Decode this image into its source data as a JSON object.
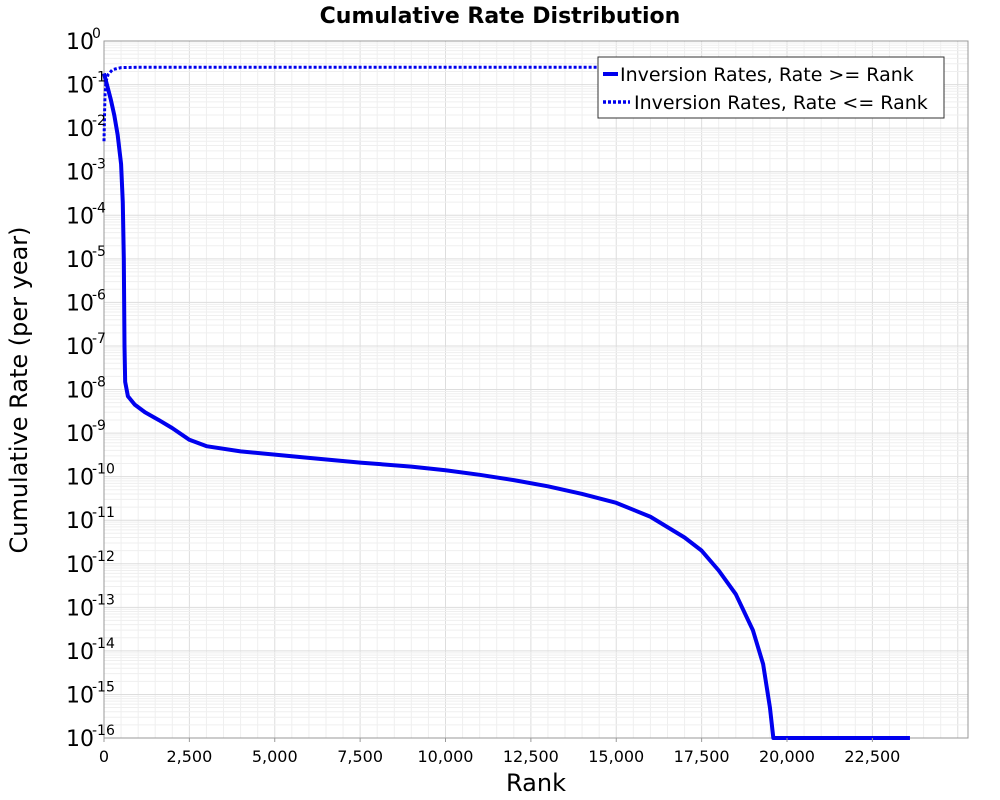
{
  "chart_data": {
    "type": "line",
    "title": "Cumulative Rate Distribution",
    "xlabel": "Rank",
    "ylabel": "Cumulative Rate (per year)",
    "xlim": [
      0,
      25300
    ],
    "ylim": [
      1e-16,
      1
    ],
    "yscale": "log",
    "grid": true,
    "legend_position": "top-right",
    "x_ticks": [
      {
        "value": 0,
        "label": "0"
      },
      {
        "value": 2500,
        "label": "2,500"
      },
      {
        "value": 5000,
        "label": "5,000"
      },
      {
        "value": 7500,
        "label": "7,500"
      },
      {
        "value": 10000,
        "label": "10,000"
      },
      {
        "value": 12500,
        "label": "12,500"
      },
      {
        "value": 15000,
        "label": "15,000"
      },
      {
        "value": 17500,
        "label": "17,500"
      },
      {
        "value": 20000,
        "label": "20,000"
      },
      {
        "value": 22500,
        "label": "22,500"
      }
    ],
    "y_ticks": [
      {
        "exp": 0,
        "base": "10",
        "sup": "0"
      },
      {
        "exp": -1,
        "base": "10",
        "sup": "-1"
      },
      {
        "exp": -2,
        "base": "10",
        "sup": "-2"
      },
      {
        "exp": -3,
        "base": "10",
        "sup": "-3"
      },
      {
        "exp": -4,
        "base": "10",
        "sup": "-4"
      },
      {
        "exp": -5,
        "base": "10",
        "sup": "-5"
      },
      {
        "exp": -6,
        "base": "10",
        "sup": "-6"
      },
      {
        "exp": -7,
        "base": "10",
        "sup": "-7"
      },
      {
        "exp": -8,
        "base": "10",
        "sup": "-8"
      },
      {
        "exp": -9,
        "base": "10",
        "sup": "-9"
      },
      {
        "exp": -10,
        "base": "10",
        "sup": "-10"
      },
      {
        "exp": -11,
        "base": "10",
        "sup": "-11"
      },
      {
        "exp": -12,
        "base": "10",
        "sup": "-12"
      },
      {
        "exp": -13,
        "base": "10",
        "sup": "-13"
      },
      {
        "exp": -14,
        "base": "10",
        "sup": "-14"
      },
      {
        "exp": -15,
        "base": "10",
        "sup": "-15"
      },
      {
        "exp": -16,
        "base": "10",
        "sup": "-16"
      }
    ],
    "series": [
      {
        "name": "Inversion Rates, Rate >= Rank",
        "style": "solid",
        "color": "#0000ee",
        "points": [
          [
            0,
            0.18
          ],
          [
            100,
            0.09
          ],
          [
            200,
            0.045
          ],
          [
            300,
            0.02
          ],
          [
            400,
            0.007
          ],
          [
            500,
            0.0015
          ],
          [
            550,
            0.0002
          ],
          [
            580,
            1e-05
          ],
          [
            600,
            1e-07
          ],
          [
            620,
            1.5e-08
          ],
          [
            700,
            7e-09
          ],
          [
            900,
            4.5e-09
          ],
          [
            1200,
            3e-09
          ],
          [
            1600,
            2e-09
          ],
          [
            2000,
            1.3e-09
          ],
          [
            2500,
            7e-10
          ],
          [
            3000,
            5e-10
          ],
          [
            4000,
            3.8e-10
          ],
          [
            5000,
            3.2e-10
          ],
          [
            6000,
            2.7e-10
          ],
          [
            7500,
            2.1e-10
          ],
          [
            9000,
            1.7e-10
          ],
          [
            10000,
            1.4e-10
          ],
          [
            11000,
            1.1e-10
          ],
          [
            12000,
            8.3e-11
          ],
          [
            13000,
            6e-11
          ],
          [
            14000,
            4e-11
          ],
          [
            15000,
            2.5e-11
          ],
          [
            16000,
            1.2e-11
          ],
          [
            17000,
            4e-12
          ],
          [
            17500,
            2e-12
          ],
          [
            18000,
            7e-13
          ],
          [
            18500,
            2e-13
          ],
          [
            19000,
            3e-14
          ],
          [
            19300,
            5e-15
          ],
          [
            19500,
            5e-16
          ],
          [
            19600,
            1e-16
          ],
          [
            23600,
            1e-16
          ]
        ]
      },
      {
        "name": "Inversion Rates, Rate <= Rank",
        "style": "dotted",
        "color": "#0000ee",
        "points": [
          [
            0,
            0.005
          ],
          [
            15,
            0.02
          ],
          [
            30,
            0.06
          ],
          [
            60,
            0.12
          ],
          [
            120,
            0.17
          ],
          [
            250,
            0.22
          ],
          [
            500,
            0.245
          ],
          [
            1000,
            0.25
          ],
          [
            5000,
            0.25
          ],
          [
            23600,
            0.25
          ]
        ]
      }
    ]
  }
}
